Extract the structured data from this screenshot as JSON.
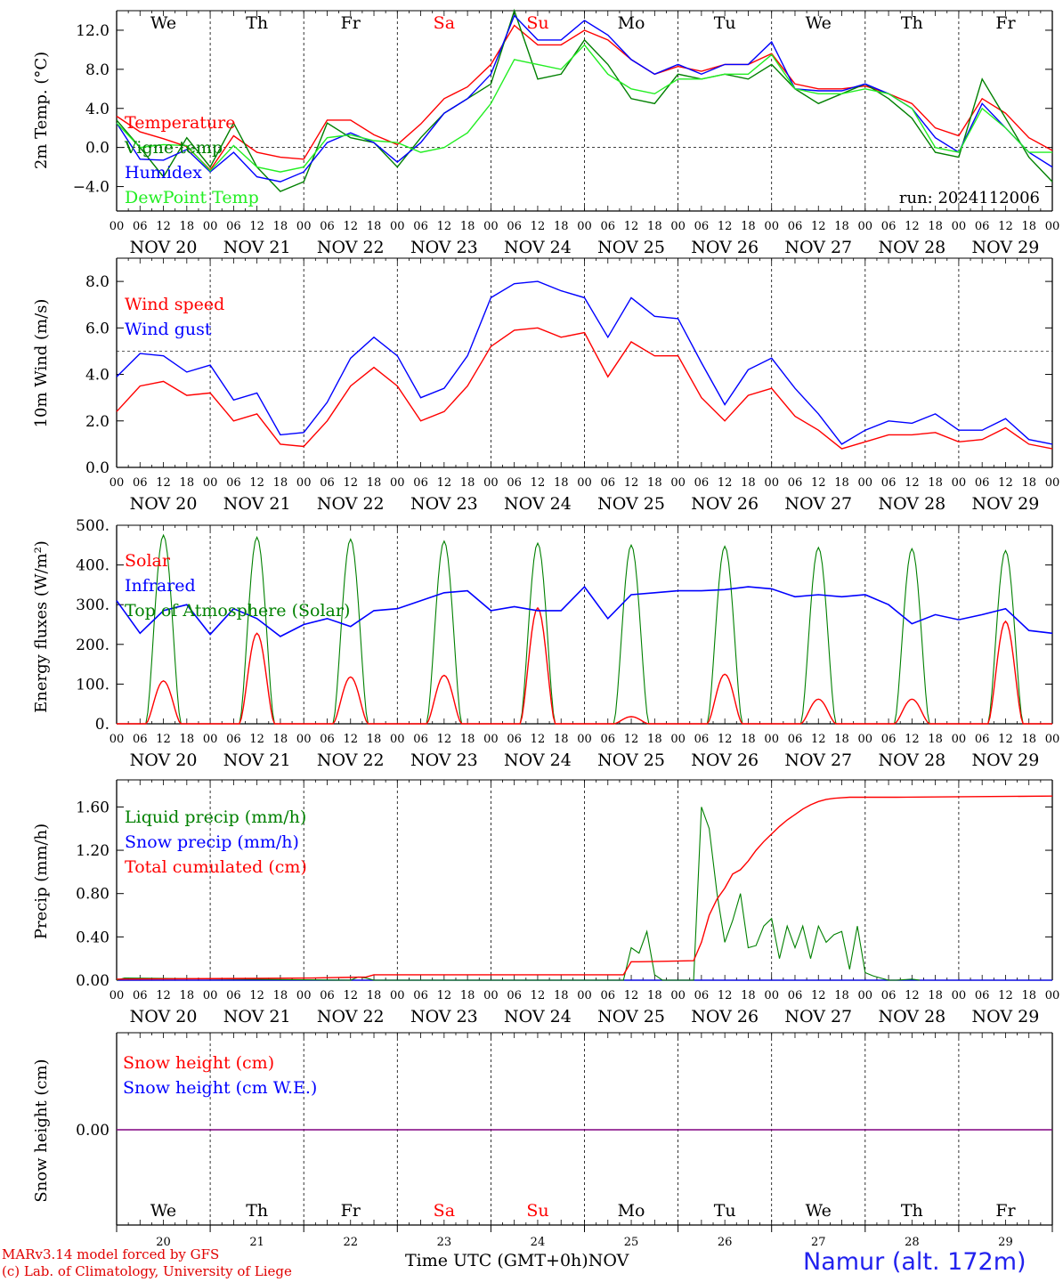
{
  "footer": {
    "credit_line1": "MARv3.14 model forced by GFS",
    "credit_line2": "(c) Lab. of Climatology, University of Liege",
    "time_label": "Time UTC (GMT+0h)",
    "month_label": "NOV",
    "station": "Namur (alt. 172m)"
  },
  "colors": {
    "red": "#ff0000",
    "green": "#008000",
    "blue": "#0000ff",
    "lightgreen": "#22ee22",
    "purple": "#800080"
  },
  "chart_data": [
    {
      "id": "temperature",
      "type": "line",
      "ylabel": "2m Temp. (°C)",
      "ylim": [
        -6.5,
        14.0
      ],
      "yticks": [
        12.0,
        8.0,
        4.0,
        0.0,
        -4.0
      ],
      "ytick_labels": [
        "12.0",
        "8.0",
        "4.0",
        "0.0",
        "−4.0"
      ],
      "reference_line": 0.0,
      "weekdays": [
        "We",
        "Th",
        "Fr",
        "Sa",
        "Su",
        "Mo",
        "Tu",
        "We",
        "Th",
        "Fr"
      ],
      "weekday_colors": [
        "#000000",
        "#000000",
        "#000000",
        "#ff0000",
        "#ff0000",
        "#000000",
        "#000000",
        "#000000",
        "#000000",
        "#000000"
      ],
      "x_hour_labels": [
        "00",
        "06",
        "12",
        "18"
      ],
      "x_day_labels": [
        "NOV 20",
        "NOV 21",
        "NOV 22",
        "NOV 23",
        "NOV 24",
        "NOV 25",
        "NOV 26",
        "NOV 27",
        "NOV 28",
        "NOV 29"
      ],
      "run_label": "run: 2024112006",
      "legend": [
        "Temperature",
        "Vigne temp",
        "Humidex",
        "DewPoint Temp"
      ],
      "x_hours": [
        0,
        6,
        12,
        18,
        24,
        30,
        36,
        42,
        48,
        54,
        60,
        66,
        72,
        78,
        84,
        90,
        96,
        102,
        108,
        114,
        120,
        126,
        132,
        138,
        144,
        150,
        156,
        162,
        168,
        174,
        180,
        186,
        192,
        198,
        204,
        210,
        216,
        222,
        228,
        234,
        240
      ],
      "series": [
        {
          "name": "Temperature",
          "color": "#ff0000",
          "values": [
            3.2,
            1.6,
            0.9,
            0.1,
            -2.3,
            1.2,
            -0.5,
            -1.0,
            -1.2,
            2.8,
            2.8,
            1.3,
            0.3,
            2.4,
            5.0,
            6.2,
            8.5,
            12.5,
            10.5,
            10.5,
            12.0,
            11.0,
            9.0,
            7.5,
            8.3,
            7.8,
            8.5,
            8.5,
            9.6,
            6.5,
            6.0,
            6.0,
            6.3,
            5.5,
            4.5,
            2.0,
            1.2,
            5.0,
            3.5,
            1.0,
            -0.3
          ]
        },
        {
          "name": "Vigne temp",
          "color": "#008000",
          "values": [
            2.8,
            0.0,
            -3.0,
            1.0,
            -2.0,
            2.5,
            -2.0,
            -4.5,
            -3.5,
            2.5,
            1.0,
            0.5,
            -2.0,
            1.0,
            3.5,
            5.0,
            6.5,
            14.0,
            7.0,
            7.5,
            11.0,
            8.5,
            5.0,
            4.5,
            7.5,
            7.0,
            7.5,
            7.0,
            8.5,
            6.0,
            4.5,
            5.5,
            6.5,
            5.0,
            3.0,
            -0.5,
            -1.0,
            7.0,
            3.0,
            -1.0,
            -3.5
          ]
        },
        {
          "name": "Humidex",
          "color": "#0000ff",
          "values": [
            2.5,
            -1.2,
            -1.3,
            -0.2,
            -2.5,
            -0.5,
            -3.0,
            -3.5,
            -2.5,
            0.5,
            1.5,
            0.5,
            -1.5,
            0.5,
            3.5,
            5.0,
            7.5,
            13.5,
            11.0,
            11.0,
            13.0,
            11.5,
            9.0,
            7.5,
            8.5,
            7.5,
            8.5,
            8.5,
            10.8,
            6.0,
            5.8,
            5.8,
            6.5,
            5.5,
            4.0,
            1.0,
            -0.5,
            4.5,
            2.0,
            -0.5,
            -2.0
          ]
        },
        {
          "name": "DewPoint Temp",
          "color": "#22ee22",
          "values": [
            2.5,
            0.0,
            0.3,
            0.2,
            -2.4,
            0.2,
            -2.0,
            -2.5,
            -2.0,
            1.0,
            1.3,
            0.7,
            0.5,
            -0.5,
            0.0,
            1.5,
            4.5,
            9.0,
            8.5,
            8.0,
            10.5,
            7.5,
            6.0,
            5.5,
            7.0,
            7.0,
            7.5,
            7.5,
            9.5,
            6.0,
            5.5,
            5.5,
            6.0,
            5.5,
            4.0,
            0.0,
            -0.5,
            4.0,
            2.0,
            -0.5,
            -0.5
          ]
        }
      ]
    },
    {
      "id": "wind",
      "type": "line",
      "ylabel": "10m Wind (m/s)",
      "ylim": [
        0.0,
        9.0
      ],
      "yticks": [
        8.0,
        6.0,
        4.0,
        2.0,
        0.0
      ],
      "ytick_labels": [
        "8.0",
        "6.0",
        "4.0",
        "2.0",
        "0.0"
      ],
      "reference_line": 5.0,
      "x_hour_labels": [
        "00",
        "06",
        "12",
        "18"
      ],
      "x_day_labels": [
        "NOV 20",
        "NOV 21",
        "NOV 22",
        "NOV 23",
        "NOV 24",
        "NOV 25",
        "NOV 26",
        "NOV 27",
        "NOV 28",
        "NOV 29"
      ],
      "legend": [
        "Wind speed",
        "Wind gust"
      ],
      "x_hours": [
        0,
        6,
        12,
        18,
        24,
        30,
        36,
        42,
        48,
        54,
        60,
        66,
        72,
        78,
        84,
        90,
        96,
        102,
        108,
        114,
        120,
        126,
        132,
        138,
        144,
        150,
        156,
        162,
        168,
        174,
        180,
        186,
        192,
        198,
        204,
        210,
        216,
        222,
        228,
        234,
        240
      ],
      "series": [
        {
          "name": "Wind speed",
          "color": "#ff0000",
          "values": [
            2.4,
            3.5,
            3.7,
            3.1,
            3.2,
            2.0,
            2.3,
            1.0,
            0.9,
            2.0,
            3.5,
            4.3,
            3.5,
            2.0,
            2.4,
            3.5,
            5.2,
            5.9,
            6.0,
            5.6,
            5.8,
            3.9,
            5.4,
            4.8,
            4.8,
            3.0,
            2.0,
            3.1,
            3.4,
            2.2,
            1.6,
            0.8,
            1.1,
            1.4,
            1.4,
            1.5,
            1.1,
            1.2,
            1.7,
            1.0,
            0.8
          ]
        },
        {
          "name": "Wind gust",
          "color": "#0000ff",
          "values": [
            3.9,
            4.9,
            4.8,
            4.1,
            4.4,
            2.9,
            3.2,
            1.4,
            1.5,
            2.8,
            4.7,
            5.6,
            4.8,
            3.0,
            3.4,
            4.8,
            7.3,
            7.9,
            8.0,
            7.6,
            7.3,
            5.6,
            7.3,
            6.5,
            6.4,
            4.5,
            2.7,
            4.2,
            4.7,
            3.4,
            2.3,
            1.0,
            1.6,
            2.0,
            1.9,
            2.3,
            1.6,
            1.6,
            2.1,
            1.2,
            1.0
          ]
        }
      ]
    },
    {
      "id": "energy",
      "type": "line",
      "ylabel": "Energy fluxes (W/m²)",
      "ylim": [
        0,
        500
      ],
      "yticks": [
        500,
        400,
        300,
        200,
        100,
        0
      ],
      "ytick_labels": [
        "500.",
        "400.",
        "300.",
        "200.",
        "100.",
        "0."
      ],
      "x_hour_labels": [
        "00",
        "06",
        "12",
        "18"
      ],
      "x_day_labels": [
        "NOV 20",
        "NOV 21",
        "NOV 22",
        "NOV 23",
        "NOV 24",
        "NOV 25",
        "NOV 26",
        "NOV 27",
        "NOV 28",
        "NOV 29"
      ],
      "legend": [
        "Solar",
        "Infrared",
        "Top of Atmosphere (Solar)"
      ],
      "toa_peaks": [
        475,
        470,
        465,
        460,
        455,
        450,
        447,
        444,
        441,
        436
      ],
      "solar_peaks": [
        108,
        228,
        118,
        122,
        292,
        18,
        125,
        62,
        62,
        258
      ],
      "infrared_hours": [
        0,
        6,
        12,
        18,
        24,
        30,
        36,
        42,
        48,
        54,
        60,
        66,
        72,
        78,
        84,
        90,
        96,
        102,
        108,
        114,
        120,
        126,
        132,
        138,
        144,
        150,
        156,
        162,
        168,
        174,
        180,
        186,
        192,
        198,
        204,
        210,
        216,
        222,
        228,
        234,
        240
      ],
      "infrared_values": [
        310,
        228,
        285,
        300,
        225,
        290,
        265,
        220,
        250,
        265,
        245,
        285,
        290,
        310,
        330,
        335,
        285,
        295,
        285,
        285,
        345,
        265,
        325,
        330,
        335,
        335,
        338,
        345,
        340,
        320,
        325,
        320,
        325,
        300,
        252,
        275,
        262,
        275,
        290,
        235,
        228
      ]
    },
    {
      "id": "precip",
      "type": "line",
      "ylabel": "Precip (mm/h)",
      "ylim": [
        0,
        1.85
      ],
      "yticks": [
        1.6,
        1.2,
        0.8,
        0.4,
        0.0
      ],
      "ytick_labels": [
        "1.60",
        "1.20",
        "0.80",
        "0.40",
        "0.00"
      ],
      "x_hour_labels": [
        "00",
        "06",
        "12",
        "18"
      ],
      "x_day_labels": [
        "NOV 20",
        "NOV 21",
        "NOV 22",
        "NOV 23",
        "NOV 24",
        "NOV 25",
        "NOV 26",
        "NOV 27",
        "NOV 28",
        "NOV 29"
      ],
      "legend": [
        "Liquid precip (mm/h)",
        "Snow precip (mm/h)",
        "Total cumulated (cm)"
      ],
      "liquid_hours": [
        0,
        2,
        60,
        62,
        64,
        66,
        130,
        132,
        134,
        136,
        138,
        140,
        148,
        150,
        152,
        154,
        156,
        158,
        160,
        162,
        164,
        166,
        168,
        170,
        172,
        174,
        176,
        178,
        180,
        182,
        184,
        186,
        188,
        190,
        192,
        194,
        196,
        198,
        200,
        204,
        206
      ],
      "liquid_values": [
        0.0,
        0.02,
        0.0,
        0.03,
        0.02,
        0.0,
        0.0,
        0.3,
        0.25,
        0.45,
        0.05,
        0.0,
        0.0,
        1.6,
        1.4,
        0.8,
        0.35,
        0.55,
        0.8,
        0.3,
        0.32,
        0.5,
        0.57,
        0.2,
        0.5,
        0.3,
        0.5,
        0.2,
        0.5,
        0.35,
        0.42,
        0.45,
        0.1,
        0.5,
        0.07,
        0.04,
        0.02,
        0.0,
        0.0,
        0.01,
        0.0
      ],
      "cumulated_hours": [
        0,
        50,
        64,
        66,
        130,
        132,
        134,
        148,
        150,
        152,
        154,
        156,
        158,
        160,
        162,
        164,
        166,
        168,
        170,
        172,
        174,
        176,
        178,
        180,
        182,
        184,
        186,
        188,
        190,
        192,
        196,
        200,
        240
      ],
      "cumulated_values": [
        0.01,
        0.02,
        0.03,
        0.05,
        0.05,
        0.17,
        0.17,
        0.18,
        0.35,
        0.6,
        0.75,
        0.85,
        0.98,
        1.02,
        1.1,
        1.2,
        1.28,
        1.35,
        1.42,
        1.48,
        1.53,
        1.58,
        1.62,
        1.65,
        1.67,
        1.68,
        1.685,
        1.69,
        1.69,
        1.69,
        1.69,
        1.69,
        1.7
      ]
    },
    {
      "id": "snow",
      "type": "line",
      "ylabel": "Snow height (cm)",
      "ytick_labels": [
        "0.00"
      ],
      "legend": [
        "Snow height (cm)",
        "Snow height (cm W.E.)"
      ],
      "weekdays": [
        "We",
        "Th",
        "Fr",
        "Sa",
        "Su",
        "Mo",
        "Tu",
        "We",
        "Th",
        "Fr"
      ],
      "weekday_colors": [
        "#000000",
        "#000000",
        "#000000",
        "#ff0000",
        "#ff0000",
        "#000000",
        "#000000",
        "#000000",
        "#000000",
        "#000000"
      ],
      "day_numbers": [
        "20",
        "21",
        "22",
        "23",
        "24",
        "25",
        "26",
        "27",
        "28",
        "29"
      ],
      "values": [
        0.0,
        0.0
      ]
    }
  ]
}
